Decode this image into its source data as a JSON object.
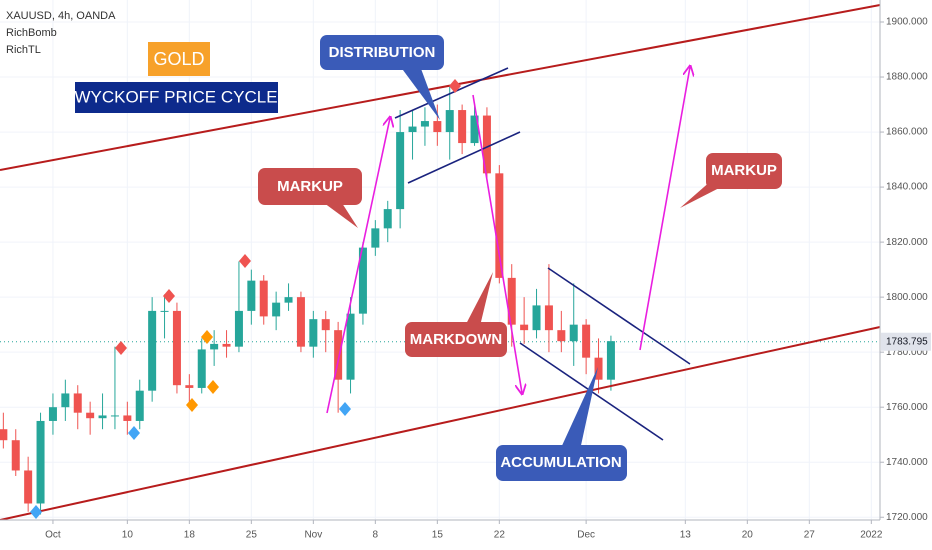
{
  "chart_data": {
    "type": "candlestick",
    "legend_lines": [
      "XAUUSD, 4h, OANDA",
      "RichBomb",
      "RichTL"
    ],
    "annotations": [
      "GOLD",
      "WYCKOFF PRICE CYCLE",
      "DISTRIBUTION",
      "MARKUP",
      "MARKDOWN",
      "MARKUP",
      "ACCUMULATION"
    ],
    "x": [
      0,
      1,
      2,
      3,
      4,
      5,
      6,
      7,
      8,
      9,
      10,
      11,
      12,
      13,
      14,
      15,
      16,
      17,
      18,
      19,
      20,
      21,
      22,
      23,
      24,
      25,
      26,
      27,
      28,
      29,
      30,
      31,
      32,
      33,
      34,
      35,
      36,
      37,
      38,
      39,
      40,
      41,
      42,
      43,
      44,
      45,
      46,
      47,
      48,
      49
    ],
    "open": [
      1752,
      1748,
      1737,
      1725,
      1755,
      1760,
      1765,
      1758,
      1756,
      1757,
      1757,
      1755,
      1766,
      1795,
      1795,
      1768,
      1767,
      1781,
      1783,
      1782,
      1795,
      1806,
      1793,
      1798,
      1800,
      1782,
      1792,
      1788,
      1770,
      1794,
      1818,
      1825,
      1832,
      1860,
      1862,
      1864,
      1860,
      1868,
      1856,
      1866,
      1845,
      1807,
      1790,
      1788,
      1797,
      1788,
      1784,
      1790,
      1778,
      1770
    ],
    "high": [
      1758,
      1752,
      1742,
      1758,
      1765,
      1770,
      1768,
      1762,
      1765,
      1782,
      1762,
      1770,
      1800,
      1801,
      1798,
      1772,
      1785,
      1788,
      1788,
      1813,
      1810,
      1808,
      1802,
      1805,
      1802,
      1795,
      1795,
      1791,
      1800,
      1820,
      1828,
      1835,
      1868,
      1868,
      1869,
      1870,
      1877,
      1870,
      1870,
      1869,
      1848,
      1812,
      1800,
      1803,
      1812,
      1795,
      1805,
      1792,
      1785,
      1786
    ],
    "low": [
      1745,
      1735,
      1722,
      1721,
      1750,
      1755,
      1752,
      1750,
      1752,
      1752,
      1750,
      1752,
      1762,
      1785,
      1765,
      1760,
      1765,
      1775,
      1778,
      1780,
      1790,
      1790,
      1788,
      1795,
      1780,
      1778,
      1780,
      1758,
      1765,
      1790,
      1815,
      1820,
      1825,
      1850,
      1855,
      1855,
      1850,
      1852,
      1855,
      1843,
      1805,
      1782,
      1783,
      1785,
      1780,
      1780,
      1775,
      1772,
      1765,
      1766
    ],
    "close": [
      1748,
      1737,
      1725,
      1755,
      1760,
      1765,
      1758,
      1756,
      1757,
      1757,
      1755,
      1766,
      1795,
      1795,
      1768,
      1767,
      1781,
      1783,
      1782,
      1795,
      1806,
      1793,
      1798,
      1800,
      1782,
      1792,
      1788,
      1770,
      1794,
      1818,
      1825,
      1832,
      1860,
      1862,
      1864,
      1860,
      1868,
      1856,
      1866,
      1845,
      1807,
      1790,
      1788,
      1797,
      1788,
      1784,
      1790,
      1778,
      1770,
      1784
    ],
    "up_color": "#26a69a",
    "down_color": "#ef5350",
    "last_price": 1783.795,
    "xlim": [
      -0.27,
      70.7
    ],
    "xticks": [
      {
        "value": 4,
        "label": "Oct"
      },
      10,
      {
        "value": 15,
        "label": "18"
      },
      {
        "value": 20,
        "label": "25"
      },
      {
        "value": 25,
        "label": "Nov"
      },
      {
        "value": 30,
        "label": "8"
      },
      {
        "value": 35,
        "label": "15"
      },
      {
        "value": 40,
        "label": "22"
      },
      {
        "value": 47,
        "label": "Dec"
      },
      {
        "value": 55,
        "label": "13"
      },
      {
        "value": 60,
        "label": "20"
      },
      {
        "value": 65,
        "label": "27"
      },
      {
        "value": 70,
        "label": "2022"
      }
    ],
    "ylim": [
      1719,
      1908
    ],
    "yticks": [
      {
        "value": 1720,
        "label": "1720.000"
      },
      {
        "value": 1740,
        "label": "1740.000"
      },
      {
        "value": 1760,
        "label": "1760.000"
      },
      {
        "value": 1780,
        "label": "1780.000"
      },
      {
        "value": 1800,
        "label": "1800.000"
      },
      {
        "value": 1820,
        "label": "1820.000"
      },
      {
        "value": 1840,
        "label": "1840.000"
      },
      {
        "value": 1860,
        "label": "1860.000"
      },
      {
        "value": 1880,
        "label": "1880.000"
      },
      {
        "value": 1900,
        "label": "1900.000"
      }
    ]
  }
}
